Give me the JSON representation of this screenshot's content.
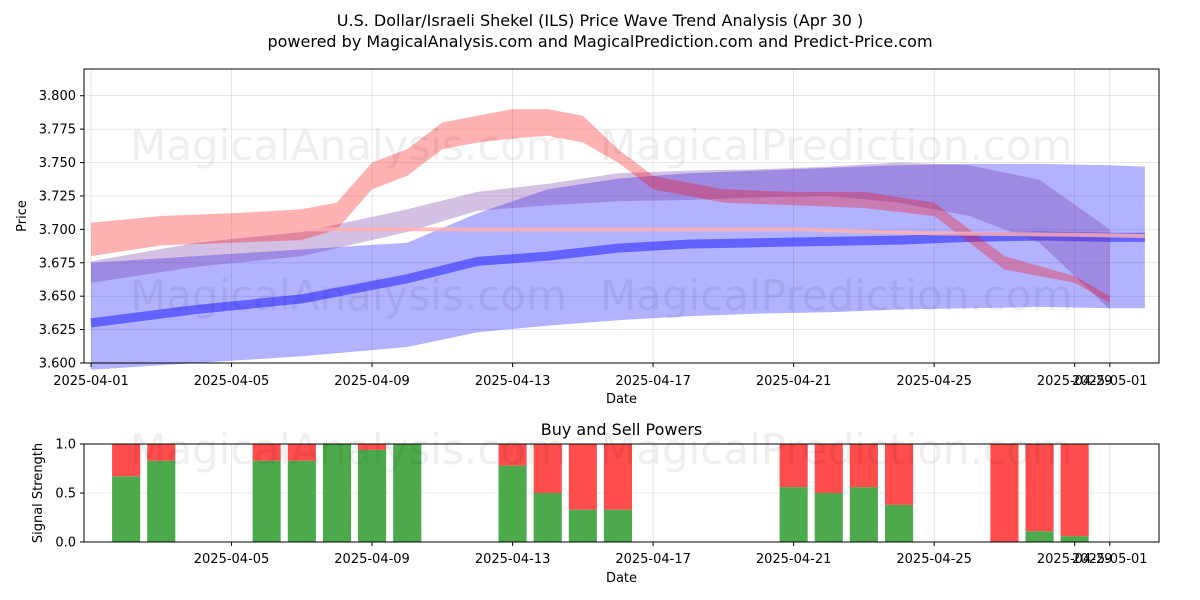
{
  "chart_data": [
    {
      "type": "area",
      "title": "U.S. Dollar/Israeli Shekel (ILS) Price Wave Trend Analysis (Apr 30 )",
      "subtitle": "powered by MagicalAnalysis.com and MagicalPrediction.com and Predict-Price.com",
      "xlabel": "Date",
      "ylabel": "Price",
      "grid": true,
      "xlim": [
        -0.2,
        30.4
      ],
      "ylim": [
        3.6,
        3.82
      ],
      "x_ticks": [
        0,
        4,
        8,
        12,
        16,
        20,
        24,
        28,
        29
      ],
      "x_tick_labels": [
        "2025-04-01",
        "2025-04-05",
        "2025-04-09",
        "2025-04-13",
        "2025-04-17",
        "2025-04-21",
        "2025-04-25",
        "2025-04-29",
        "2025-05-01"
      ],
      "y_ticks": [
        3.6,
        3.625,
        3.65,
        3.675,
        3.7,
        3.725,
        3.75,
        3.775,
        3.8
      ],
      "y_tick_labels": [
        "3.600",
        "3.625",
        "3.650",
        "3.675",
        "3.700",
        "3.725",
        "3.750",
        "3.775",
        "3.800"
      ],
      "watermarks": [
        "MagicalAnalysis.com",
        "MagicalPrediction.com",
        "MagicalAnalysis.com",
        "MagicalPrediction.com"
      ],
      "series": [
        {
          "name": "blue-band-wide",
          "color": "#0000ff",
          "x": [
            0,
            3,
            6,
            9,
            11,
            13,
            15,
            17,
            19,
            21,
            23,
            25,
            27,
            29,
            30
          ],
          "low": [
            3.595,
            3.6,
            3.605,
            3.612,
            3.623,
            3.628,
            3.632,
            3.635,
            3.637,
            3.638,
            3.64,
            3.641,
            3.642,
            3.641,
            3.641
          ],
          "high": [
            3.675,
            3.68,
            3.685,
            3.69,
            3.712,
            3.73,
            3.738,
            3.742,
            3.744,
            3.746,
            3.748,
            3.749,
            3.749,
            3.748,
            3.747
          ]
        },
        {
          "name": "blue-line-thick",
          "color": "#0000ff",
          "x": [
            0,
            3,
            6,
            9,
            11,
            13,
            15,
            17,
            19,
            21,
            23,
            25,
            27,
            29,
            30
          ],
          "y": [
            3.63,
            3.64,
            3.648,
            3.663,
            3.676,
            3.68,
            3.686,
            3.689,
            3.69,
            3.691,
            3.692,
            3.694,
            3.695,
            3.694,
            3.694
          ]
        },
        {
          "name": "purple-band",
          "color": "#7030a0",
          "x": [
            0,
            3,
            6,
            9,
            11,
            13,
            15,
            17,
            19,
            21,
            23,
            25,
            27,
            29
          ],
          "low": [
            3.66,
            3.672,
            3.68,
            3.698,
            3.714,
            3.718,
            3.721,
            3.722,
            3.724,
            3.725,
            3.72,
            3.71,
            3.69,
            3.64
          ],
          "high": [
            3.676,
            3.69,
            3.698,
            3.715,
            3.728,
            3.734,
            3.742,
            3.744,
            3.745,
            3.747,
            3.75,
            3.748,
            3.737,
            3.7
          ]
        },
        {
          "name": "red-band-main",
          "color": "#ff0000",
          "x": [
            0,
            2,
            4,
            6,
            7,
            8,
            9,
            10,
            11,
            12,
            13,
            14,
            15,
            16,
            18,
            20,
            22,
            24,
            26,
            28,
            29
          ],
          "low": [
            3.68,
            3.688,
            3.69,
            3.692,
            3.7,
            3.73,
            3.74,
            3.76,
            3.765,
            3.768,
            3.77,
            3.765,
            3.75,
            3.73,
            3.72,
            3.718,
            3.716,
            3.71,
            3.67,
            3.66,
            3.645
          ],
          "high": [
            3.705,
            3.71,
            3.712,
            3.715,
            3.72,
            3.75,
            3.76,
            3.78,
            3.785,
            3.79,
            3.79,
            3.785,
            3.76,
            3.74,
            3.73,
            3.728,
            3.728,
            3.72,
            3.68,
            3.665,
            3.65
          ]
        },
        {
          "name": "red-line",
          "color": "#ffb0b0",
          "x": [
            0,
            5,
            10,
            15,
            20,
            24,
            28,
            30
          ],
          "y": [
            3.7,
            3.7,
            3.7,
            3.7,
            3.7,
            3.697,
            3.696,
            3.695
          ]
        }
      ]
    },
    {
      "type": "bar",
      "title": "Buy and Sell Powers",
      "xlabel": "Date",
      "ylabel": "Signal Strength",
      "grid": true,
      "xlim": [
        -0.2,
        30.4
      ],
      "ylim": [
        0,
        1
      ],
      "x_ticks": [
        4,
        8,
        12,
        16,
        20,
        24,
        28,
        29
      ],
      "x_tick_labels": [
        "2025-04-05",
        "2025-04-09",
        "2025-04-13",
        "2025-04-17",
        "2025-04-21",
        "2025-04-25",
        "2025-04-29",
        "2025-05-01"
      ],
      "y_ticks": [
        0,
        0.5,
        1
      ],
      "y_tick_labels": [
        "0.0",
        "0.5",
        "1.0"
      ],
      "watermarks": [
        "MagicalAnalysis.com",
        "MagicalPrediction.com"
      ],
      "buy_color": "#4caa4c",
      "sell_color": "#ff4c4c",
      "x": [
        1,
        2,
        5,
        6,
        7,
        8,
        9,
        12,
        13,
        14,
        15,
        20,
        21,
        22,
        23,
        26,
        27,
        28
      ],
      "series": [
        {
          "name": "Buy",
          "values": [
            0.67,
            0.83,
            0.83,
            0.83,
            1.0,
            0.94,
            1.0,
            0.78,
            0.5,
            0.33,
            0.33,
            0.56,
            0.5,
            0.56,
            0.38,
            0.0,
            0.11,
            0.06
          ]
        },
        {
          "name": "Sell",
          "values": [
            0.33,
            0.17,
            0.17,
            0.17,
            0.0,
            0.06,
            0.0,
            0.22,
            0.5,
            0.67,
            0.67,
            0.44,
            0.5,
            0.44,
            0.62,
            1.0,
            0.89,
            0.94
          ]
        }
      ]
    }
  ]
}
